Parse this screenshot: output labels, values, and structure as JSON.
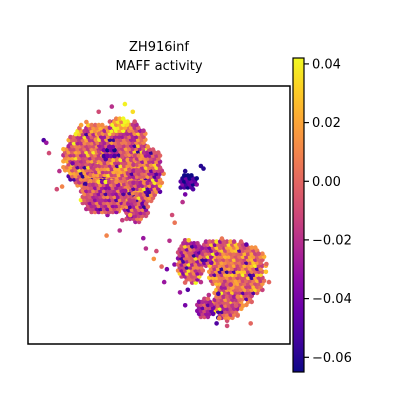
{
  "chart_data": {
    "type": "scatter",
    "title_line1": "ZH916inf",
    "title_line2": "MAFF activity",
    "xlabel": "",
    "ylabel": "",
    "colormap": "plasma",
    "colormap_stops": [
      "#0d0887",
      "#41049d",
      "#6a00a8",
      "#8f0da4",
      "#b12a90",
      "#cc4778",
      "#e16462",
      "#f2844b",
      "#fca636",
      "#fcce25",
      "#f0f921"
    ],
    "colorbar": {
      "vmin": -0.065,
      "vmax": 0.042,
      "ticks": [
        0.04,
        0.02,
        0.0,
        -0.02,
        -0.04,
        -0.06
      ],
      "tick_labels": [
        "0.04",
        "0.02",
        "0.00",
        "−0.02",
        "−0.04",
        "−0.06"
      ]
    },
    "xlim": [
      0,
      100
    ],
    "ylim": [
      0,
      100
    ],
    "grid": false,
    "axes_ticks_visible": false,
    "regions": [
      {
        "kind": "blob",
        "cx": 25,
        "cy": 72,
        "rx": 12,
        "ry": 14,
        "mean": 0.0
      },
      {
        "kind": "blob",
        "cx": 36,
        "cy": 78,
        "rx": 10,
        "ry": 9,
        "mean": -0.005
      },
      {
        "kind": "blob",
        "cx": 34,
        "cy": 62,
        "rx": 12,
        "ry": 11,
        "mean": 0.004
      },
      {
        "kind": "blob",
        "cx": 29,
        "cy": 57,
        "rx": 9,
        "ry": 7,
        "mean": -0.012
      },
      {
        "kind": "blob",
        "cx": 45,
        "cy": 66,
        "rx": 7,
        "ry": 12,
        "mean": -0.006
      },
      {
        "kind": "blob",
        "cx": 41,
        "cy": 52,
        "rx": 5,
        "ry": 5,
        "mean": -0.01
      },
      {
        "kind": "blob",
        "cx": 62,
        "cy": 32,
        "rx": 6,
        "ry": 9,
        "mean": -0.014
      },
      {
        "kind": "blob",
        "cx": 80,
        "cy": 28,
        "rx": 11,
        "ry": 13,
        "mean": 0.006
      },
      {
        "kind": "blob",
        "cx": 72,
        "cy": 35,
        "rx": 7,
        "ry": 6,
        "mean": -0.018
      },
      {
        "kind": "blob",
        "cx": 76,
        "cy": 16,
        "rx": 6,
        "ry": 7,
        "mean": -0.006
      },
      {
        "kind": "blob",
        "cx": 68,
        "cy": 14,
        "rx": 4,
        "ry": 4,
        "mean": -0.022
      },
      {
        "kind": "cluster",
        "cx": 61,
        "cy": 63,
        "rx": 4,
        "ry": 3,
        "mean": -0.058
      },
      {
        "kind": "cluster",
        "cx": 31,
        "cy": 74,
        "rx": 3,
        "ry": 3,
        "mean": -0.05
      },
      {
        "kind": "cluster",
        "cx": 35,
        "cy": 85,
        "rx": 3,
        "ry": 3,
        "mean": 0.03
      }
    ]
  }
}
